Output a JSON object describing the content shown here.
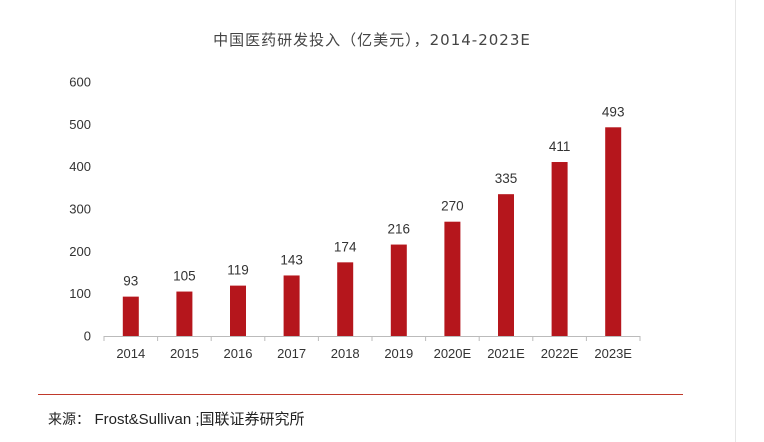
{
  "chart_data": {
    "type": "bar",
    "title": "中国医药研发投入（亿美元），2014-2023E",
    "categories": [
      "2014",
      "2015",
      "2016",
      "2017",
      "2018",
      "2019",
      "2020E",
      "2021E",
      "2022E",
      "2023E"
    ],
    "values": [
      93,
      105,
      119,
      143,
      174,
      216,
      270,
      335,
      411,
      493
    ],
    "ylim": [
      0,
      600
    ],
    "yticks": [
      0,
      100,
      200,
      300,
      400,
      500,
      600
    ],
    "xlabel": "",
    "ylabel": "",
    "grid": false,
    "legend": "none",
    "bar_color": "#b5161c"
  },
  "source": {
    "label": "来源：",
    "text": "Frost&Sullivan ;国联证券研究所"
  },
  "colors": {
    "bar": "#b5161c",
    "divider": "#c0392b"
  }
}
